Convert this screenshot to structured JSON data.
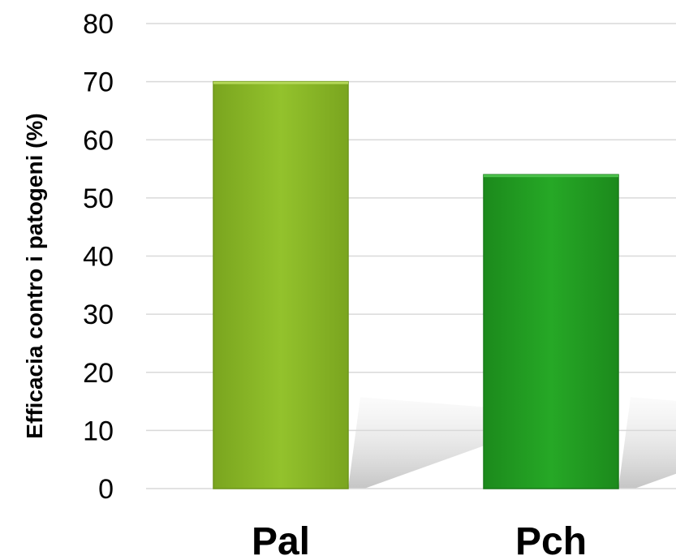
{
  "chart_data": {
    "type": "bar",
    "categories": [
      "Pal",
      "Pch"
    ],
    "values": [
      70,
      54
    ],
    "title": "",
    "xlabel": "",
    "ylabel": "Efficacia contro i patogeni  (%)",
    "ylim": [
      0,
      80
    ],
    "yticks": [
      "0",
      "10",
      "20",
      "30",
      "40",
      "50",
      "60",
      "70",
      "80"
    ],
    "grid": true,
    "bar_colors": [
      "#8fbf2a",
      "#24a324"
    ]
  }
}
